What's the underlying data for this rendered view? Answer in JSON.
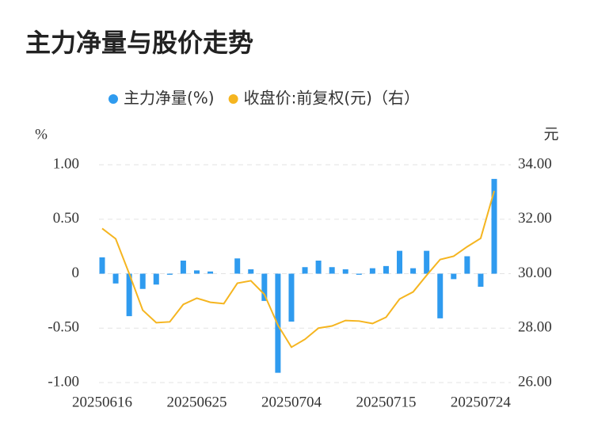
{
  "chart_data": {
    "type": "bar-line",
    "title": "主力净量与股价走势",
    "y_label": "%",
    "y2_label": "元",
    "categories": [
      "20250616",
      null,
      null,
      null,
      null,
      null,
      null,
      "20250625",
      null,
      null,
      null,
      null,
      null,
      null,
      "20250704",
      null,
      null,
      null,
      null,
      null,
      null,
      "20250715",
      null,
      null,
      null,
      null,
      null,
      null,
      "20250724",
      null
    ],
    "series": [
      {
        "name": "主力净量(%)",
        "color": "#2f9bef",
        "type": "bar",
        "values": [
          0.15,
          -0.09,
          -0.39,
          -0.14,
          -0.1,
          -0.01,
          0.12,
          0.03,
          0.02,
          0,
          0.14,
          0.04,
          -0.25,
          -0.91,
          -0.44,
          0.06,
          0.12,
          0.06,
          0.04,
          -0.01,
          0.05,
          0.07,
          0.21,
          0.05,
          0.21,
          -0.41,
          -0.05,
          0.16,
          -0.12,
          0.87
        ]
      },
      {
        "name": "收盘价:前复权(元)（右）",
        "color": "#f5b520",
        "type": "line",
        "axis": "y2",
        "values": [
          31.66,
          31.28,
          30.0,
          28.66,
          28.2,
          28.23,
          28.87,
          29.1,
          28.95,
          28.9,
          29.65,
          29.74,
          29.24,
          28.11,
          27.3,
          27.59,
          28.0,
          28.08,
          28.28,
          28.26,
          28.17,
          28.4,
          29.07,
          29.33,
          29.94,
          30.52,
          30.64,
          30.99,
          31.3,
          33.04
        ]
      }
    ],
    "ylim": [
      -1,
      1
    ],
    "yticks": [
      {
        "value": -1,
        "label": "-1.00"
      },
      {
        "value": -0.5,
        "label": "-0.50"
      },
      0,
      {
        "value": 0.5,
        "label": "0.50"
      },
      {
        "value": 1,
        "label": "1.00"
      }
    ],
    "y2lim": [
      26,
      34
    ],
    "y2ticks": [
      {
        "value": 26,
        "label": "26.00"
      },
      {
        "value": 28,
        "label": "28.00"
      },
      {
        "value": 30,
        "label": "30.00"
      },
      {
        "value": 32,
        "label": "32.00"
      },
      {
        "value": 34,
        "label": "34.00"
      }
    ],
    "grid": true
  }
}
